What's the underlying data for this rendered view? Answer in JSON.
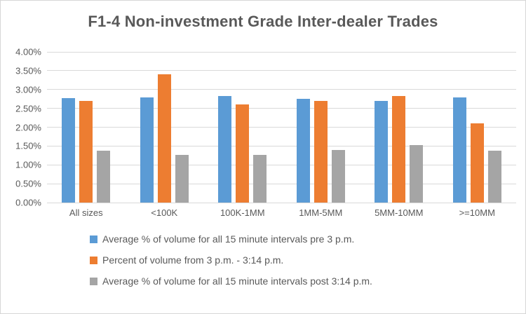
{
  "chart_data": {
    "type": "bar",
    "title": "F1-4 Non-investment Grade Inter-dealer Trades",
    "categories": [
      "All sizes",
      "<100K",
      "100K-1MM",
      "1MM-5MM",
      "5MM-10MM",
      ">=10MM"
    ],
    "series": [
      {
        "name": "Average % of volume for all 15 minute intervals pre 3 p.m.",
        "color": "#5B9BD5",
        "values": [
          2.78,
          2.79,
          2.83,
          2.75,
          2.7,
          2.79
        ]
      },
      {
        "name": "Percent of volume from 3 p.m. - 3:14 p.m.",
        "color": "#ED7D31",
        "values": [
          2.7,
          3.4,
          2.6,
          2.7,
          2.83,
          2.1
        ]
      },
      {
        "name": "Average % of volume for all 15 minute intervals post 3:14 p.m.",
        "color": "#A5A5A5",
        "values": [
          1.37,
          1.27,
          1.27,
          1.4,
          1.52,
          1.38
        ]
      }
    ],
    "y_axis": {
      "min": 0,
      "max": 4,
      "step": 0.5,
      "tick_labels": [
        "4.00%",
        "3.50%",
        "3.00%",
        "2.50%",
        "2.00%",
        "1.50%",
        "1.00%",
        "0.50%",
        "0.00%"
      ]
    },
    "grid": true,
    "legend_position": "bottom-left",
    "colors": {
      "text": "#595959",
      "gridline": "#d9d9d9",
      "background": "#ffffff",
      "border": "#d6d6d6"
    }
  }
}
